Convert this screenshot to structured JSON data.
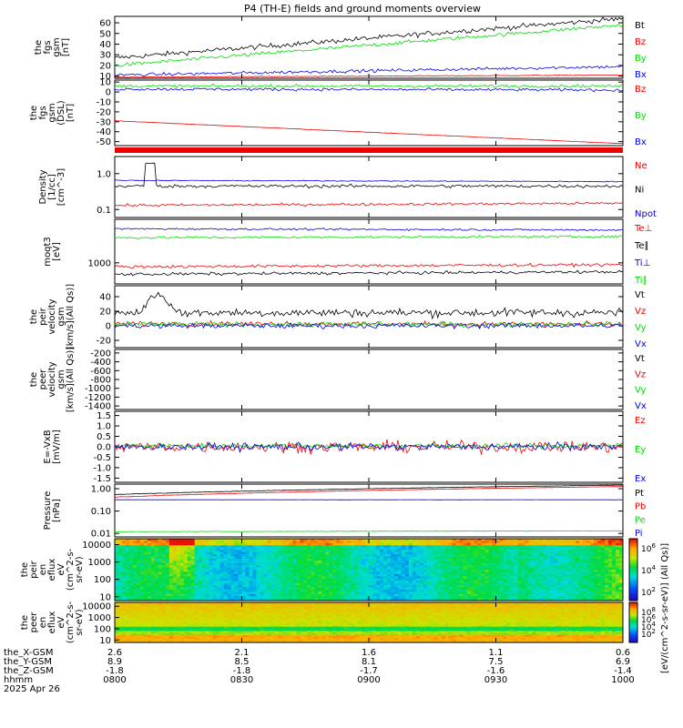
{
  "title": "P4 (TH-E) fields and ground moments overview",
  "colors": {
    "black": "#000000",
    "red": "#ee0000",
    "green": "#00dd00",
    "blue": "#0000ee"
  },
  "chart_data": [
    {
      "id": "fgs1",
      "type": "line",
      "ylabel": [
        "the",
        "fgs",
        "gsm",
        "[nT]"
      ],
      "yticks": [
        "60",
        "50",
        "40",
        "30",
        "20",
        "10"
      ],
      "ylim": [
        8,
        66
      ],
      "series": [
        {
          "name": "Bt",
          "color": "black",
          "start": 27,
          "end": 64,
          "noise": 4
        },
        {
          "name": "Bz",
          "color": "red",
          "start": 9,
          "end": 11,
          "noise": 0.6
        },
        {
          "name": "By",
          "color": "green",
          "start": 20,
          "end": 58,
          "noise": 3
        },
        {
          "name": "Bx",
          "color": "blue",
          "start": 11,
          "end": 19,
          "noise": 2.5
        }
      ]
    },
    {
      "id": "fgs2",
      "type": "line",
      "ylabel": [
        "the",
        "fgs",
        "gsm",
        "(DSL)",
        "[nT]"
      ],
      "yticks": [
        "10",
        "0",
        "-10",
        "-20",
        "-30",
        "-40",
        "-50"
      ],
      "ylim": [
        -54,
        12
      ],
      "series": [
        {
          "name": "Bz",
          "color": "red",
          "start": -29,
          "end": -52,
          "noise": 0.3
        },
        {
          "name": "By",
          "color": "green",
          "start": 6,
          "end": 6,
          "noise": 2.5
        },
        {
          "name": "Bx",
          "color": "blue",
          "start": 3,
          "end": 2,
          "noise": 2.5
        }
      ]
    },
    {
      "id": "density",
      "type": "line",
      "log": true,
      "ylabel": [
        "Density",
        "[1/cc]",
        "[cm^-3]"
      ],
      "yticks": [
        "1.0",
        "0.1"
      ],
      "ylim": [
        0.06,
        3
      ],
      "series": [
        {
          "name": "Ne",
          "color": "red",
          "start": 0.13,
          "end": 0.15,
          "noise": 0.02
        },
        {
          "name": "Ni",
          "color": "black",
          "start": 0.45,
          "end": 0.45,
          "noise": 0.08
        },
        {
          "name": "Npot",
          "color": "blue",
          "start": 0.65,
          "end": 0.6,
          "noise": 0.03
        }
      ]
    },
    {
      "id": "temp",
      "type": "line",
      "log": true,
      "ylabel": [
        "moqt3",
        "[eV]"
      ],
      "yticks": [
        "1000"
      ],
      "ylim": [
        300,
        12000
      ],
      "series": [
        {
          "name": "Te⊥",
          "color": "red",
          "start": 800,
          "end": 900,
          "noise": 120
        },
        {
          "name": "Te∥",
          "color": "black",
          "start": 520,
          "end": 600,
          "noise": 80
        },
        {
          "name": "Ti⊥",
          "color": "blue",
          "start": 7000,
          "end": 6500,
          "noise": 600
        },
        {
          "name": "Ti∥",
          "color": "green",
          "start": 4200,
          "end": 4500,
          "noise": 500
        }
      ]
    },
    {
      "id": "peirv",
      "type": "line",
      "ylabel": [
        "the",
        "peir",
        "velocity",
        "gsm",
        "[km/s](All Qs)]"
      ],
      "yticks": [
        "40",
        "20",
        "0",
        "-20"
      ],
      "ylim": [
        -30,
        55
      ],
      "series": [
        {
          "name": "Vt",
          "color": "black",
          "start": 18,
          "end": 18,
          "noise": 10
        },
        {
          "name": "Vz",
          "color": "red",
          "start": 3,
          "end": 2,
          "noise": 6
        },
        {
          "name": "Vy",
          "color": "green",
          "start": 2,
          "end": 2,
          "noise": 6
        },
        {
          "name": "Vx",
          "color": "blue",
          "start": 0,
          "end": 0,
          "noise": 6
        }
      ]
    },
    {
      "id": "peerv",
      "type": "line",
      "ylabel": [
        "the",
        "peer",
        "velocity",
        "gsm",
        "[km/s](All Qs)]"
      ],
      "yticks": [
        "-200",
        "-400",
        "-600",
        "-800",
        "-1000",
        "-1200",
        "-1400"
      ],
      "ylim": [
        -1480,
        -120
      ],
      "series": [
        {
          "name": "Vt",
          "color": "black"
        },
        {
          "name": "Vz",
          "color": "red"
        },
        {
          "name": "Vy",
          "color": "green"
        },
        {
          "name": "Vx",
          "color": "blue"
        }
      ]
    },
    {
      "id": "efield",
      "type": "line",
      "ylabel": [
        "E=-VxB",
        "[mV/m]"
      ],
      "yticks": [
        "1.5",
        "1.0",
        "0.5",
        "0.0",
        "-0.5",
        "-1.0",
        "-1.5"
      ],
      "ylim": [
        -1.7,
        1.7
      ],
      "series": [
        {
          "name": "Ez",
          "color": "red",
          "start": 0,
          "end": 0,
          "noise": 0.45
        },
        {
          "name": "Ey",
          "color": "green",
          "start": 0.05,
          "end": 0.05,
          "noise": 0.2
        },
        {
          "name": "Ex",
          "color": "blue",
          "start": 0,
          "end": 0,
          "noise": 0.3
        }
      ]
    },
    {
      "id": "pressure",
      "type": "line",
      "log": true,
      "ylabel": [
        "Pressure",
        "[nPa]"
      ],
      "yticks": [
        "1.00",
        "0.10",
        "0.01"
      ],
      "ylim": [
        0.007,
        1.6
      ],
      "series": [
        {
          "name": "Pt",
          "color": "black",
          "start": 0.55,
          "end": 1.45,
          "noise": 0.03
        },
        {
          "name": "Pb",
          "color": "red",
          "start": 0.42,
          "end": 1.25,
          "noise": 0.02
        },
        {
          "name": "Pe",
          "color": "green",
          "start": 0.012,
          "end": 0.013,
          "noise": 0.0005
        },
        {
          "name": "Pi",
          "color": "blue",
          "start": 0.32,
          "end": 0.32,
          "noise": 0.005
        }
      ]
    },
    {
      "id": "peir_spec",
      "type": "heatmap",
      "ylabel": [
        "the",
        "peir",
        "en",
        "eflux",
        "eV",
        "(cm^2-s-",
        "sr-eV)"
      ],
      "yticks": [
        "10000",
        "1000",
        "100",
        "10"
      ],
      "colorbar": [
        "10^6",
        "10^4",
        "10^2"
      ]
    },
    {
      "id": "peer_spec",
      "type": "heatmap",
      "ylabel": [
        "the",
        "peer",
        "en",
        "eflux",
        "eV",
        "(cm^2-s-",
        "sr-eV)"
      ],
      "yticks": [
        "10000",
        "1000",
        "100",
        "10"
      ],
      "colorbar": [
        "10^8",
        "10^6",
        "10^4",
        "10^2"
      ],
      "colorbar_label": "[eV/(cm^2-s-sr-eV)] (All Qs)]"
    }
  ],
  "xaxis": {
    "rows": [
      {
        "label": "the_X-GSM",
        "values": [
          "2.6",
          "2.1",
          "1.6",
          "1.1",
          "0.6"
        ]
      },
      {
        "label": "the_Y-GSM",
        "values": [
          "8.9",
          "8.5",
          "8.1",
          "7.5",
          "6.9"
        ]
      },
      {
        "label": "the_Z-GSM",
        "values": [
          "-1.8",
          "-1.8",
          "-1.7",
          "-1.6",
          "-1.4"
        ]
      },
      {
        "label": "hhmm",
        "values": [
          "0800",
          "0830",
          "0900",
          "0930",
          "1000"
        ]
      }
    ],
    "date": "2025 Apr 26"
  }
}
